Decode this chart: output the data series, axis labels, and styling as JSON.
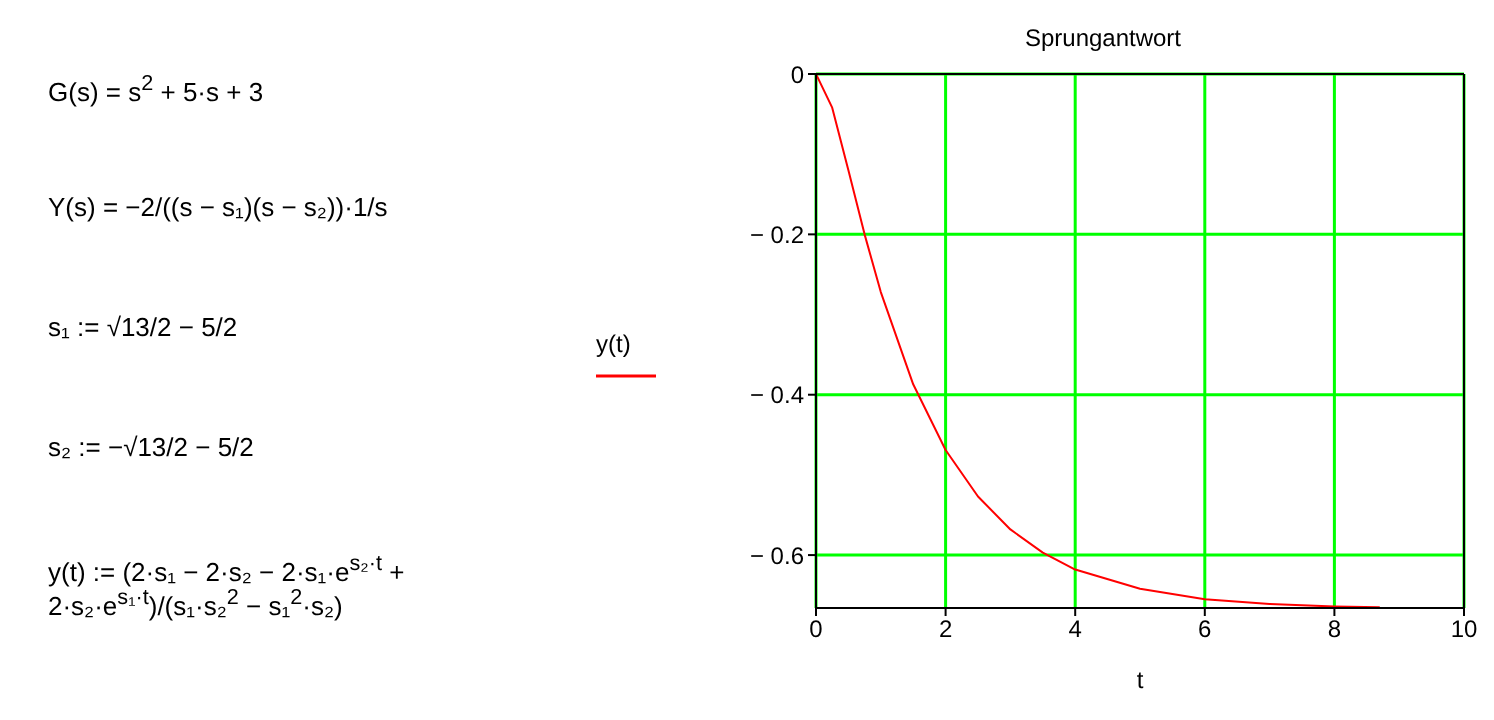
{
  "chart_data": {
    "type": "line",
    "title": "Sprungantwort",
    "xlabel": "t",
    "annotations": [
      "G(s) = s$^{2}$ + 5·s + 3",
      "Y(s) = −2/((s − s₁)(s − s₂))·1/s",
      "s₁ := √13/2 − 5/2",
      "s₂ := −√13/2 − 5/2",
      "y(t) := (2·s₁ − 2·s₂ − 2·s₁·e$^{s₂·t}$ + 2·s₂·e$^{s₁·t}$)/(s₁·s₂$^{2}$ − s₁$^{2}$·s₂)"
    ],
    "x": [
      0,
      0.25,
      0.5,
      0.75,
      1,
      1.5,
      2,
      2.5,
      3,
      3.5,
      4,
      5,
      6,
      7,
      8,
      8.7
    ],
    "series": [
      {
        "name": "y(t)",
        "color": "#ff0000",
        "values": [
          0,
          -0.042,
          -0.12,
          -0.2,
          -0.272,
          -0.387,
          -0.469,
          -0.527,
          -0.568,
          -0.597,
          -0.618,
          -0.642,
          -0.655,
          -0.661,
          -0.664,
          -0.665
        ]
      }
    ],
    "xlim": [
      0,
      10
    ],
    "xticks": [
      0,
      2,
      4,
      6,
      8,
      10
    ],
    "ylim": [
      -0.666,
      0
    ],
    "yticks": [
      0,
      {
        "value": -0.2,
        "label": "− 0.2"
      },
      {
        "value": -0.4,
        "label": "− 0.4"
      },
      {
        "value": -0.6,
        "label": "− 0.6"
      }
    ],
    "grid": true,
    "legend": "left",
    "marker": "none",
    "line_style": "solid"
  }
}
